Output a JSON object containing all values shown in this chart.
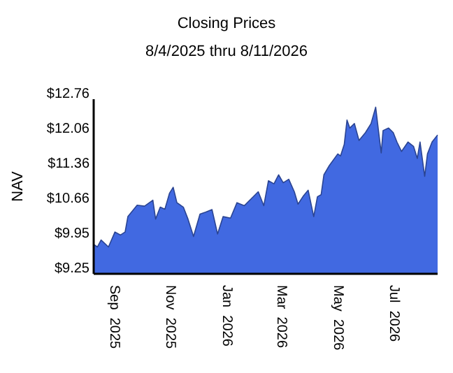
{
  "chart_data": {
    "type": "area",
    "title": "Closing Prices",
    "subtitle": "8/4/2025 thru 8/11/2026",
    "ylabel": "NAV",
    "x": [
      "2025-08-04",
      "2025-08-08",
      "2025-08-12",
      "2025-08-20",
      "2025-08-27",
      "2025-09-02",
      "2025-09-07",
      "2025-09-10",
      "2025-09-20",
      "2025-09-28",
      "2025-10-07",
      "2025-10-10",
      "2025-10-15",
      "2025-10-20",
      "2025-10-25",
      "2025-10-29",
      "2025-11-02",
      "2025-11-09",
      "2025-11-14",
      "2025-11-20",
      "2025-11-27",
      "2025-12-03",
      "2025-12-10",
      "2025-12-16",
      "2025-12-22",
      "2025-12-30",
      "2026-01-06",
      "2026-01-14",
      "2026-01-22",
      "2026-01-29",
      "2026-02-04",
      "2026-02-09",
      "2026-02-15",
      "2026-02-20",
      "2026-02-25",
      "2026-03-03",
      "2026-03-09",
      "2026-03-13",
      "2026-03-19",
      "2026-03-24",
      "2026-03-30",
      "2026-04-03",
      "2026-04-07",
      "2026-04-10",
      "2026-04-16",
      "2026-04-25",
      "2026-04-28",
      "2026-05-02",
      "2026-05-05",
      "2026-05-08",
      "2026-05-13",
      "2026-05-18",
      "2026-05-25",
      "2026-05-31",
      "2026-06-05",
      "2026-06-08",
      "2026-06-11",
      "2026-06-13",
      "2026-06-19",
      "2026-06-24",
      "2026-06-28",
      "2026-07-03",
      "2026-07-10",
      "2026-07-16",
      "2026-07-20",
      "2026-07-23",
      "2026-07-28",
      "2026-07-31",
      "2026-08-05",
      "2026-08-11"
    ],
    "series": [
      {
        "color": "#4169e1",
        "values": [
          9.84,
          9.79,
          9.93,
          9.79,
          10.09,
          10.03,
          10.09,
          10.4,
          10.63,
          10.61,
          10.73,
          10.35,
          10.59,
          10.55,
          10.87,
          10.99,
          10.68,
          10.59,
          10.35,
          10.0,
          10.45,
          10.49,
          10.54,
          10.05,
          10.4,
          10.37,
          10.68,
          10.62,
          10.77,
          10.9,
          10.62,
          11.12,
          11.06,
          11.24,
          11.08,
          11.15,
          10.9,
          10.65,
          10.82,
          10.93,
          10.4,
          10.8,
          10.84,
          11.24,
          11.43,
          11.66,
          11.62,
          11.85,
          12.34,
          12.18,
          12.27,
          11.93,
          12.09,
          12.27,
          12.6,
          12.13,
          11.68,
          12.13,
          12.18,
          12.09,
          11.9,
          11.71,
          11.9,
          11.81,
          11.57,
          11.9,
          11.21,
          11.66,
          11.9,
          12.04
        ]
      }
    ],
    "xlim": [
      "2025-08-04",
      "2026-08-11"
    ],
    "xticks": [
      {
        "value": "2025-09-01",
        "label": "Sep  2025"
      },
      {
        "value": "2025-11-01",
        "label": "Nov  2025"
      },
      {
        "value": "2026-01-01",
        "label": "Jan  2026"
      },
      {
        "value": "2026-03-01",
        "label": "Mar  2026"
      },
      {
        "value": "2026-05-01",
        "label": "May  2026"
      },
      {
        "value": "2026-07-01",
        "label": "Jul  2026"
      }
    ],
    "ylim": [
      9.25,
      12.76
    ],
    "yticks": [
      {
        "value": 9.25,
        "label": "$9.25"
      },
      {
        "value": 9.95,
        "label": "$9.95"
      },
      {
        "value": 10.66,
        "label": "$10.66"
      },
      {
        "value": 11.36,
        "label": "$11.36"
      },
      {
        "value": 12.06,
        "label": "$12.06"
      },
      {
        "value": 12.76,
        "label": "$12.76"
      }
    ],
    "grid": false
  }
}
